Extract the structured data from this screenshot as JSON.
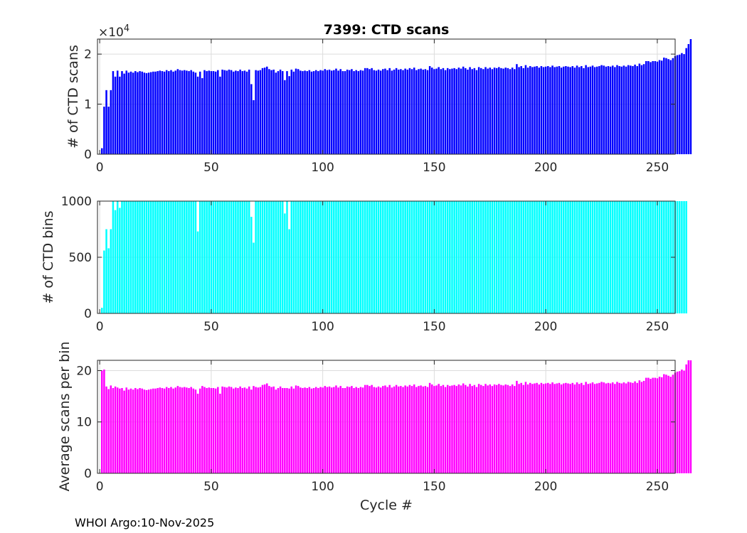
{
  "chart_data": [
    {
      "type": "bar",
      "title": "7399: CTD scans",
      "ylabel": "# of CTD scans",
      "xlabel": "",
      "color": "#0000ff",
      "xlim": [
        -1,
        258
      ],
      "ylim": [
        0,
        2.3
      ],
      "y_exponent_label": "×10",
      "y_exponent_power": "4",
      "xticks": [
        0,
        50,
        100,
        150,
        200,
        250
      ],
      "xtick_labels": [
        "0",
        "50",
        "100",
        "150",
        "200",
        "250"
      ],
      "yticks": [
        0,
        1,
        2
      ],
      "ytick_labels": [
        "0",
        "1",
        "2"
      ],
      "values": [
        0.12,
        0.95,
        1.28,
        0.95,
        1.28,
        1.66,
        1.55,
        1.67,
        1.55,
        1.66,
        1.61,
        1.67,
        1.63,
        1.65,
        1.63,
        1.66,
        1.64,
        1.66,
        1.65,
        1.63,
        1.62,
        1.63,
        1.64,
        1.65,
        1.65,
        1.66,
        1.67,
        1.66,
        1.65,
        1.68,
        1.66,
        1.68,
        1.65,
        1.67,
        1.7,
        1.68,
        1.67,
        1.68,
        1.67,
        1.66,
        1.68,
        1.65,
        1.63,
        1.55,
        1.65,
        1.52,
        1.68,
        1.66,
        1.67,
        1.66,
        1.66,
        1.65,
        1.68,
        1.55,
        1.69,
        1.68,
        1.67,
        1.69,
        1.68,
        1.65,
        1.67,
        1.66,
        1.69,
        1.66,
        1.67,
        1.65,
        1.69,
        1.4,
        1.08,
        1.68,
        1.67,
        1.68,
        1.72,
        1.73,
        1.75,
        1.7,
        1.68,
        1.69,
        1.63,
        1.66,
        1.69,
        1.66,
        1.48,
        1.66,
        1.56,
        1.69,
        1.65,
        1.71,
        1.7,
        1.67,
        1.66,
        1.67,
        1.66,
        1.68,
        1.65,
        1.66,
        1.68,
        1.66,
        1.68,
        1.67,
        1.7,
        1.68,
        1.69,
        1.67,
        1.68,
        1.71,
        1.67,
        1.7,
        1.66,
        1.66,
        1.69,
        1.68,
        1.7,
        1.66,
        1.68,
        1.66,
        1.68,
        1.67,
        1.72,
        1.72,
        1.7,
        1.72,
        1.68,
        1.67,
        1.69,
        1.67,
        1.7,
        1.71,
        1.68,
        1.72,
        1.67,
        1.69,
        1.72,
        1.69,
        1.7,
        1.68,
        1.71,
        1.69,
        1.72,
        1.7,
        1.73,
        1.68,
        1.7,
        1.71,
        1.69,
        1.7,
        1.68,
        1.76,
        1.73,
        1.7,
        1.71,
        1.74,
        1.7,
        1.72,
        1.68,
        1.72,
        1.7,
        1.71,
        1.72,
        1.7,
        1.73,
        1.71,
        1.75,
        1.72,
        1.69,
        1.74,
        1.7,
        1.72,
        1.68,
        1.74,
        1.72,
        1.7,
        1.74,
        1.71,
        1.73,
        1.7,
        1.73,
        1.72,
        1.74,
        1.72,
        1.71,
        1.73,
        1.72,
        1.7,
        1.73,
        1.7,
        1.8,
        1.74,
        1.76,
        1.72,
        1.78,
        1.73,
        1.76,
        1.74,
        1.75,
        1.76,
        1.73,
        1.76,
        1.74,
        1.75,
        1.76,
        1.74,
        1.77,
        1.74,
        1.75,
        1.76,
        1.73,
        1.75,
        1.76,
        1.75,
        1.74,
        1.76,
        1.73,
        1.77,
        1.74,
        1.76,
        1.72,
        1.78,
        1.74,
        1.75,
        1.77,
        1.74,
        1.75,
        1.76,
        1.78,
        1.77,
        1.75,
        1.76,
        1.75,
        1.77,
        1.74,
        1.78,
        1.76,
        1.75,
        1.77,
        1.75,
        1.78,
        1.77,
        1.76,
        1.79,
        1.76,
        1.81,
        1.78,
        1.8,
        1.86,
        1.86,
        1.84,
        1.86,
        1.86,
        1.85,
        1.88,
        1.87,
        1.93,
        1.92,
        1.9,
        1.88,
        1.92,
        1.96,
        1.98,
        1.99,
        2.02,
        2.0,
        2.12,
        2.2,
        2.3
      ]
    },
    {
      "type": "bar",
      "title": "",
      "ylabel": "# of CTD bins",
      "xlabel": "",
      "color": "#00ffff",
      "xlim": [
        -1,
        258
      ],
      "ylim": [
        0,
        1000
      ],
      "xticks": [
        0,
        50,
        100,
        150,
        200,
        250
      ],
      "xtick_labels": [
        "0",
        "50",
        "100",
        "150",
        "200",
        "250"
      ],
      "yticks": [
        0,
        500,
        1000
      ],
      "ytick_labels": [
        "0",
        "500",
        "1000"
      ],
      "values": [
        50,
        560,
        750,
        580,
        750,
        1000,
        920,
        1000,
        940,
        1000,
        1000,
        1000,
        1000,
        1000,
        1000,
        1000,
        1000,
        1000,
        1000,
        1000,
        1000,
        1000,
        1000,
        1000,
        1000,
        1000,
        1000,
        1000,
        1000,
        1000,
        1000,
        1000,
        1000,
        1000,
        1000,
        1000,
        1000,
        1000,
        1000,
        1000,
        1000,
        1000,
        1000,
        730,
        1000,
        1000,
        1000,
        1000,
        1000,
        1000,
        1000,
        1000,
        1000,
        1000,
        1000,
        1000,
        1000,
        1000,
        1000,
        1000,
        1000,
        1000,
        1000,
        1000,
        1000,
        1000,
        1000,
        860,
        630,
        1000,
        1000,
        1000,
        1000,
        1000,
        1000,
        1000,
        1000,
        1000,
        1000,
        1000,
        1000,
        1000,
        890,
        1000,
        750,
        1000,
        1000,
        1000,
        1000,
        1000,
        1000,
        1000,
        1000,
        1000,
        1000,
        1000,
        1000,
        1000,
        1000,
        1000,
        1000,
        1000,
        1000,
        1000,
        1000,
        1000,
        1000,
        1000,
        1000,
        1000,
        1000,
        1000,
        1000,
        1000,
        1000,
        1000,
        1000,
        1000,
        1000,
        1000,
        1000,
        1000,
        1000,
        1000,
        1000,
        1000,
        1000,
        1000,
        1000,
        1000,
        1000,
        1000,
        1000,
        1000,
        1000,
        1000,
        1000,
        1000,
        1000,
        1000,
        1000,
        1000,
        1000,
        1000,
        1000,
        1000,
        1000,
        1000,
        1000,
        1000,
        1000,
        1000,
        1000,
        1000,
        1000,
        1000,
        1000,
        1000,
        1000,
        1000,
        1000,
        1000,
        1000,
        1000,
        1000,
        1000,
        1000,
        1000,
        1000,
        1000,
        1000,
        1000,
        1000,
        1000,
        1000,
        1000,
        1000,
        1000,
        1000,
        1000,
        1000,
        1000,
        1000,
        1000,
        1000,
        1000,
        1000,
        1000,
        1000,
        1000,
        1000,
        1000,
        1000,
        1000,
        1000,
        1000,
        1000,
        1000,
        1000,
        1000,
        1000,
        1000,
        1000,
        1000,
        1000,
        1000,
        1000,
        1000,
        1000,
        1000,
        1000,
        1000,
        1000,
        1000,
        1000,
        1000,
        1000,
        1000,
        1000,
        1000,
        1000,
        1000,
        1000,
        1000,
        1000,
        1000,
        1000,
        1000,
        1000,
        1000,
        1000,
        1000,
        1000,
        1000,
        1000,
        1000,
        1000,
        1000,
        1000,
        1000,
        1000,
        1000,
        1000,
        1000,
        1000,
        1000,
        1000,
        1000,
        1000,
        1000,
        1000,
        1000,
        1000,
        1000,
        1000,
        1000,
        1000,
        1000,
        1000,
        1000,
        1000,
        1000,
        1000
      ]
    },
    {
      "type": "bar",
      "title": "",
      "ylabel": "Average scans per bin",
      "xlabel": "Cycle #",
      "color": "#ff00ff",
      "xlim": [
        -1,
        258
      ],
      "ylim": [
        0,
        22
      ],
      "xticks": [
        0,
        50,
        100,
        150,
        200,
        250
      ],
      "xtick_labels": [
        "0",
        "50",
        "100",
        "150",
        "200",
        "250"
      ],
      "yticks": [
        0,
        10,
        20
      ],
      "ytick_labels": [
        "0",
        "10",
        "20"
      ],
      "values": [
        20.0,
        20.2,
        16.9,
        16.4,
        17.1,
        16.6,
        16.9,
        16.7,
        16.5,
        16.6,
        16.1,
        16.7,
        16.3,
        16.5,
        16.3,
        16.6,
        16.4,
        16.6,
        16.5,
        16.3,
        16.2,
        16.3,
        16.4,
        16.5,
        16.5,
        16.6,
        16.7,
        16.6,
        16.5,
        16.8,
        16.6,
        16.8,
        16.5,
        16.7,
        17.0,
        16.8,
        16.7,
        16.8,
        16.7,
        16.6,
        16.8,
        16.5,
        16.3,
        15.5,
        16.5,
        17.0,
        16.8,
        16.6,
        16.7,
        16.6,
        16.6,
        16.5,
        16.8,
        15.5,
        16.9,
        16.8,
        16.7,
        16.9,
        16.8,
        16.5,
        16.7,
        16.6,
        16.9,
        16.6,
        16.7,
        16.5,
        16.9,
        16.3,
        17.0,
        16.8,
        16.7,
        16.8,
        17.2,
        17.3,
        17.5,
        17.0,
        16.8,
        16.9,
        16.3,
        16.6,
        16.9,
        16.6,
        16.6,
        16.6,
        16.5,
        16.9,
        16.5,
        17.1,
        17.0,
        16.7,
        16.6,
        16.7,
        16.6,
        16.8,
        16.5,
        16.6,
        16.8,
        16.6,
        16.8,
        16.7,
        17.0,
        16.8,
        16.9,
        16.7,
        16.8,
        17.1,
        16.7,
        17.0,
        16.6,
        16.6,
        16.9,
        16.8,
        17.0,
        16.6,
        16.8,
        16.6,
        16.8,
        16.7,
        17.2,
        17.2,
        17.0,
        17.2,
        16.8,
        16.7,
        16.9,
        16.7,
        17.0,
        17.1,
        16.8,
        17.2,
        16.7,
        16.9,
        17.2,
        16.9,
        17.0,
        16.8,
        17.1,
        16.9,
        17.2,
        17.0,
        17.3,
        16.8,
        17.0,
        17.1,
        16.9,
        17.0,
        16.8,
        17.6,
        17.3,
        17.0,
        17.1,
        17.4,
        17.0,
        17.2,
        16.8,
        17.2,
        17.0,
        17.1,
        17.2,
        17.0,
        17.3,
        17.1,
        17.5,
        17.2,
        16.9,
        17.4,
        17.0,
        17.2,
        16.8,
        17.4,
        17.2,
        17.0,
        17.4,
        17.1,
        17.3,
        17.0,
        17.3,
        17.2,
        17.4,
        17.2,
        17.1,
        17.3,
        17.2,
        17.0,
        17.3,
        17.0,
        18.0,
        17.4,
        17.6,
        17.2,
        17.8,
        17.3,
        17.6,
        17.4,
        17.5,
        17.6,
        17.3,
        17.6,
        17.4,
        17.5,
        17.6,
        17.4,
        17.7,
        17.4,
        17.5,
        17.6,
        17.3,
        17.5,
        17.6,
        17.5,
        17.4,
        17.6,
        17.3,
        17.7,
        17.4,
        17.6,
        17.2,
        17.8,
        17.4,
        17.5,
        17.7,
        17.4,
        17.5,
        17.6,
        17.8,
        17.7,
        17.5,
        17.6,
        17.5,
        17.7,
        17.4,
        17.8,
        17.6,
        17.5,
        17.7,
        17.5,
        17.8,
        17.7,
        17.6,
        17.9,
        17.6,
        18.1,
        17.8,
        18.0,
        18.6,
        18.6,
        18.4,
        18.6,
        18.6,
        18.5,
        18.8,
        18.7,
        19.3,
        19.2,
        19.0,
        18.8,
        19.2,
        19.6,
        19.8,
        19.9,
        20.2,
        20.0,
        21.2,
        22.0,
        22.0
      ]
    }
  ],
  "footer": "WHOI Argo:10-Nov-2025"
}
